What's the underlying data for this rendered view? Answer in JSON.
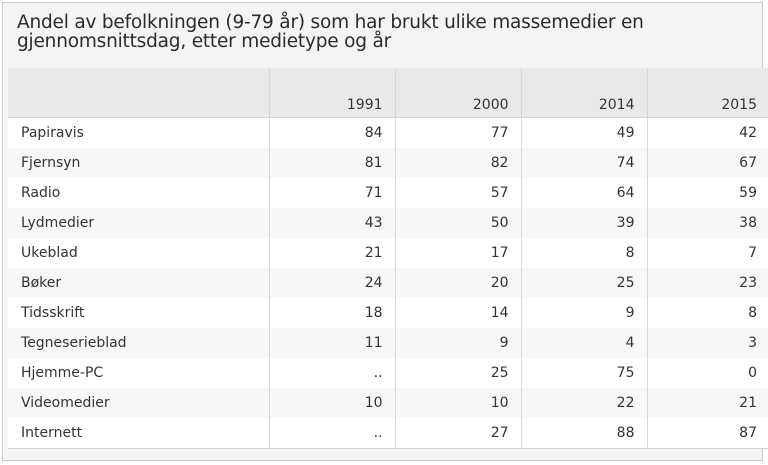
{
  "title": "Andel av befolkningen (9-79 år) som har brukt ulike massemedier en gjennomsnittsdag, etter medietype og år",
  "chart_data": {
    "type": "table",
    "title": "Andel av befolkningen (9-79 år) som har brukt ulike massemedier en gjennomsnittsdag, etter medietype og år",
    "columns": [
      "",
      "1991",
      "2000",
      "2014",
      "2015"
    ],
    "rows": [
      {
        "label": "Papiravis",
        "values": [
          "84",
          "77",
          "49",
          "42"
        ]
      },
      {
        "label": "Fjernsyn",
        "values": [
          "81",
          "82",
          "74",
          "67"
        ]
      },
      {
        "label": "Radio",
        "values": [
          "71",
          "57",
          "64",
          "59"
        ]
      },
      {
        "label": "Lydmedier",
        "values": [
          "43",
          "50",
          "39",
          "38"
        ]
      },
      {
        "label": "Ukeblad",
        "values": [
          "21",
          "17",
          "8",
          "7"
        ]
      },
      {
        "label": "Bøker",
        "values": [
          "24",
          "20",
          "25",
          "23"
        ]
      },
      {
        "label": "Tidsskrift",
        "values": [
          "18",
          "14",
          "9",
          "8"
        ]
      },
      {
        "label": "Tegneserieblad",
        "values": [
          "11",
          "9",
          "4",
          "3"
        ]
      },
      {
        "label": "Hjemme-PC",
        "values": [
          "..",
          "25",
          "75",
          "0"
        ]
      },
      {
        "label": "Videomedier",
        "values": [
          "10",
          "10",
          "22",
          "21"
        ]
      },
      {
        "label": "Internett",
        "values": [
          "..",
          "27",
          "88",
          "87"
        ]
      }
    ]
  }
}
